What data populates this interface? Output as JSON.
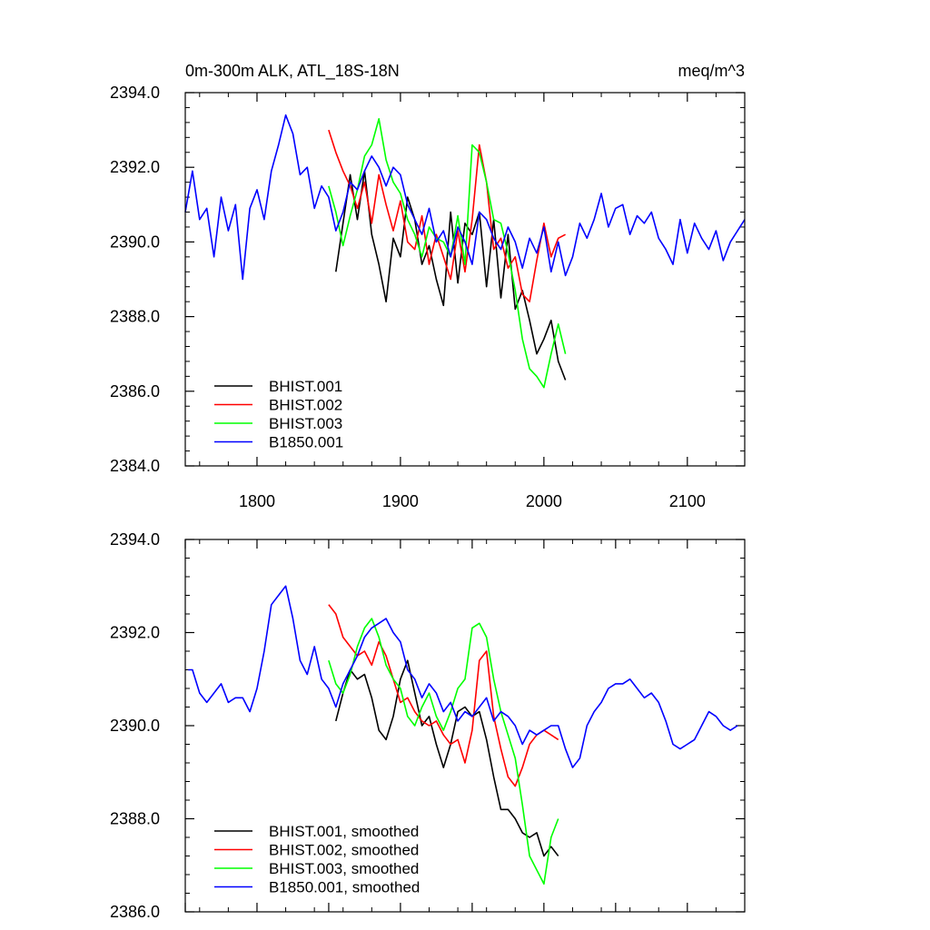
{
  "chart_data": [
    {
      "type": "line",
      "title_left": "0m-300m ALK, ATL_18S-18N",
      "title_right": "meq/m^3",
      "xlabel": "",
      "ylabel": "",
      "xlim": [
        1750,
        2140
      ],
      "ylim": [
        2384,
        2394
      ],
      "x_ticks": [
        1800,
        1900,
        2000,
        2100
      ],
      "x_tick_labels": [
        "1800",
        "1900",
        "2000",
        "2100"
      ],
      "y_ticks": [
        2384,
        2386,
        2388,
        2390,
        2392,
        2394
      ],
      "y_tick_labels": [
        "2384.0",
        "2386.0",
        "2388.0",
        "2390.0",
        "2392.0",
        "2394.0"
      ],
      "legend_position": "bottom-left",
      "series": [
        {
          "name": "BHIST.001",
          "color": "#000000",
          "x": [
            1855,
            1860,
            1865,
            1870,
            1875,
            1880,
            1885,
            1890,
            1895,
            1900,
            1905,
            1910,
            1915,
            1920,
            1925,
            1930,
            1935,
            1940,
            1945,
            1950,
            1955,
            1960,
            1965,
            1970,
            1975,
            1980,
            1985,
            1990,
            1995,
            2000,
            2005,
            2010,
            2015
          ],
          "y": [
            2389.2,
            2390.5,
            2391.8,
            2390.6,
            2391.9,
            2390.2,
            2389.4,
            2388.4,
            2390.1,
            2389.6,
            2391.2,
            2390.6,
            2389.4,
            2389.9,
            2389.0,
            2388.3,
            2390.8,
            2388.9,
            2390.5,
            2390.2,
            2390.8,
            2388.8,
            2390.6,
            2388.5,
            2390.2,
            2388.2,
            2388.7,
            2387.9,
            2387.0,
            2387.4,
            2387.9,
            2386.8,
            2386.3
          ]
        },
        {
          "name": "BHIST.002",
          "color": "#ff0000",
          "x": [
            1850,
            1855,
            1860,
            1865,
            1870,
            1875,
            1880,
            1885,
            1890,
            1895,
            1900,
            1905,
            1910,
            1915,
            1920,
            1925,
            1930,
            1935,
            1940,
            1945,
            1950,
            1955,
            1960,
            1965,
            1970,
            1975,
            1980,
            1985,
            1990,
            1995,
            2000,
            2005,
            2010,
            2015
          ],
          "y": [
            2393.0,
            2392.4,
            2391.9,
            2391.5,
            2390.9,
            2391.6,
            2390.5,
            2391.8,
            2391.0,
            2390.3,
            2391.1,
            2390.0,
            2389.8,
            2390.7,
            2389.4,
            2390.2,
            2389.6,
            2389.0,
            2390.3,
            2389.2,
            2390.6,
            2392.6,
            2391.6,
            2389.8,
            2390.1,
            2389.3,
            2389.6,
            2388.6,
            2388.4,
            2389.5,
            2390.5,
            2389.6,
            2390.1,
            2390.2
          ]
        },
        {
          "name": "BHIST.003",
          "color": "#00ff00",
          "x": [
            1850,
            1855,
            1860,
            1865,
            1870,
            1875,
            1880,
            1885,
            1890,
            1895,
            1900,
            1905,
            1910,
            1915,
            1920,
            1925,
            1930,
            1935,
            1940,
            1945,
            1950,
            1955,
            1960,
            1965,
            1970,
            1975,
            1980,
            1985,
            1990,
            1995,
            2000,
            2005,
            2010,
            2015
          ],
          "y": [
            2391.5,
            2390.8,
            2389.9,
            2390.7,
            2391.4,
            2392.3,
            2392.6,
            2393.3,
            2392.2,
            2391.6,
            2391.3,
            2390.6,
            2390.2,
            2389.6,
            2390.4,
            2390.1,
            2390.0,
            2389.6,
            2390.7,
            2389.4,
            2392.6,
            2392.4,
            2391.6,
            2390.6,
            2390.5,
            2389.7,
            2388.7,
            2387.4,
            2386.6,
            2386.4,
            2386.1,
            2387.0,
            2387.8,
            2387.0
          ]
        },
        {
          "name": "B1850.001",
          "color": "#0000ff",
          "x": [
            1750,
            1755,
            1760,
            1765,
            1770,
            1775,
            1780,
            1785,
            1790,
            1795,
            1800,
            1805,
            1810,
            1815,
            1820,
            1825,
            1830,
            1835,
            1840,
            1845,
            1850,
            1855,
            1860,
            1865,
            1870,
            1875,
            1880,
            1885,
            1890,
            1895,
            1900,
            1905,
            1910,
            1915,
            1920,
            1925,
            1930,
            1935,
            1940,
            1945,
            1950,
            1955,
            1960,
            1965,
            1970,
            1975,
            1980,
            1985,
            1990,
            1995,
            2000,
            2005,
            2010,
            2015,
            2020,
            2025,
            2030,
            2035,
            2040,
            2045,
            2050,
            2055,
            2060,
            2065,
            2070,
            2075,
            2080,
            2085,
            2090,
            2095,
            2100,
            2105,
            2110,
            2115,
            2120,
            2125,
            2130,
            2135,
            2140
          ],
          "y": [
            2390.8,
            2391.9,
            2390.6,
            2390.9,
            2389.6,
            2391.2,
            2390.3,
            2391.0,
            2389.0,
            2390.9,
            2391.4,
            2390.6,
            2391.9,
            2392.6,
            2393.4,
            2392.9,
            2391.8,
            2392.0,
            2390.9,
            2391.5,
            2391.2,
            2390.3,
            2390.8,
            2391.6,
            2391.4,
            2391.9,
            2392.3,
            2392.0,
            2391.5,
            2392.0,
            2391.8,
            2391.0,
            2390.6,
            2390.2,
            2390.9,
            2390.0,
            2390.3,
            2389.6,
            2390.4,
            2390.0,
            2389.4,
            2390.8,
            2390.6,
            2390.1,
            2389.8,
            2390.4,
            2390.0,
            2389.3,
            2390.1,
            2389.7,
            2390.4,
            2389.2,
            2390.0,
            2389.1,
            2389.6,
            2390.5,
            2390.1,
            2390.6,
            2391.3,
            2390.4,
            2390.9,
            2391.0,
            2390.2,
            2390.7,
            2390.5,
            2390.8,
            2390.1,
            2389.8,
            2389.4,
            2390.6,
            2389.7,
            2390.5,
            2390.1,
            2389.8,
            2390.3,
            2389.5,
            2390.0,
            2390.3,
            2390.6
          ]
        }
      ]
    },
    {
      "type": "line",
      "xlabel": "",
      "ylabel": "",
      "xlim": [
        1750,
        2140
      ],
      "ylim": [
        2386,
        2394
      ],
      "x_ticks": [
        1750,
        1800,
        1850,
        1900,
        1950,
        2000,
        2050,
        2100
      ],
      "y_ticks": [
        2386,
        2388,
        2390,
        2392,
        2394
      ],
      "y_tick_labels": [
        "2386.0",
        "2388.0",
        "2390.0",
        "2392.0",
        "2394.0"
      ],
      "legend_position": "bottom-left",
      "series": [
        {
          "name": "BHIST.001, smoothed",
          "color": "#000000",
          "x": [
            1855,
            1860,
            1865,
            1870,
            1875,
            1880,
            1885,
            1890,
            1895,
            1900,
            1905,
            1910,
            1915,
            1920,
            1925,
            1930,
            1935,
            1940,
            1945,
            1950,
            1955,
            1960,
            1965,
            1970,
            1975,
            1980,
            1985,
            1990,
            1995,
            2000,
            2005,
            2010
          ],
          "y": [
            2390.1,
            2390.7,
            2391.2,
            2391.0,
            2391.1,
            2390.6,
            2389.9,
            2389.7,
            2390.2,
            2391.0,
            2391.4,
            2390.7,
            2390.0,
            2390.2,
            2389.6,
            2389.1,
            2389.6,
            2390.3,
            2390.4,
            2390.2,
            2390.3,
            2389.7,
            2388.9,
            2388.2,
            2388.2,
            2388.0,
            2387.7,
            2387.6,
            2387.7,
            2387.2,
            2387.4,
            2387.2
          ]
        },
        {
          "name": "BHIST.002, smoothed",
          "color": "#ff0000",
          "x": [
            1850,
            1855,
            1860,
            1865,
            1870,
            1875,
            1880,
            1885,
            1890,
            1895,
            1900,
            1905,
            1910,
            1915,
            1920,
            1925,
            1930,
            1935,
            1940,
            1945,
            1950,
            1955,
            1960,
            1965,
            1970,
            1975,
            1980,
            1985,
            1990,
            1995,
            2000,
            2005,
            2010
          ],
          "y": [
            2392.6,
            2392.4,
            2391.9,
            2391.7,
            2391.5,
            2391.6,
            2391.3,
            2391.8,
            2391.5,
            2391.0,
            2390.5,
            2390.6,
            2390.3,
            2390.1,
            2390.0,
            2390.1,
            2389.8,
            2389.6,
            2389.7,
            2389.2,
            2389.9,
            2391.4,
            2391.6,
            2390.2,
            2389.5,
            2388.9,
            2388.7,
            2389.1,
            2389.6,
            2389.8,
            2389.9,
            2389.8,
            2389.7
          ]
        },
        {
          "name": "BHIST.003, smoothed",
          "color": "#00ff00",
          "x": [
            1850,
            1855,
            1860,
            1865,
            1870,
            1875,
            1880,
            1885,
            1890,
            1895,
            1900,
            1905,
            1910,
            1915,
            1920,
            1925,
            1930,
            1935,
            1940,
            1945,
            1950,
            1955,
            1960,
            1965,
            1970,
            1975,
            1980,
            1985,
            1990,
            1995,
            2000,
            2005,
            2010
          ],
          "y": [
            2391.4,
            2390.9,
            2390.7,
            2391.1,
            2391.7,
            2392.1,
            2392.3,
            2391.9,
            2391.3,
            2391.0,
            2390.8,
            2390.2,
            2390.0,
            2390.4,
            2390.7,
            2390.2,
            2389.9,
            2390.3,
            2390.8,
            2391.0,
            2392.1,
            2392.2,
            2391.9,
            2391.0,
            2390.3,
            2389.8,
            2389.3,
            2388.3,
            2387.2,
            2386.9,
            2386.6,
            2387.6,
            2388.0
          ]
        },
        {
          "name": "B1850.001, smoothed",
          "color": "#0000ff",
          "x": [
            1752,
            1755,
            1760,
            1765,
            1770,
            1775,
            1780,
            1785,
            1790,
            1795,
            1800,
            1805,
            1810,
            1815,
            1820,
            1825,
            1830,
            1835,
            1840,
            1845,
            1850,
            1855,
            1860,
            1865,
            1870,
            1875,
            1880,
            1885,
            1890,
            1895,
            1900,
            1905,
            1910,
            1915,
            1920,
            1925,
            1930,
            1935,
            1940,
            1945,
            1950,
            1955,
            1960,
            1965,
            1970,
            1975,
            1980,
            1985,
            1990,
            1995,
            2000,
            2005,
            2010,
            2015,
            2020,
            2025,
            2030,
            2035,
            2040,
            2045,
            2050,
            2055,
            2060,
            2065,
            2070,
            2075,
            2080,
            2085,
            2090,
            2095,
            2100,
            2105,
            2110,
            2115,
            2120,
            2125,
            2130,
            2135
          ],
          "y": [
            2391.2,
            2391.2,
            2390.7,
            2390.5,
            2390.7,
            2390.9,
            2390.5,
            2390.6,
            2390.6,
            2390.3,
            2390.8,
            2391.6,
            2392.6,
            2392.8,
            2393.0,
            2392.3,
            2391.4,
            2391.1,
            2391.7,
            2391.0,
            2390.8,
            2390.4,
            2390.9,
            2391.2,
            2391.5,
            2391.9,
            2392.1,
            2392.2,
            2392.3,
            2392.0,
            2391.8,
            2391.2,
            2391.0,
            2390.6,
            2390.9,
            2390.7,
            2390.3,
            2390.5,
            2390.1,
            2390.3,
            2390.2,
            2390.4,
            2390.6,
            2390.1,
            2390.3,
            2390.2,
            2390.0,
            2389.6,
            2389.9,
            2389.8,
            2389.9,
            2390.0,
            2390.0,
            2389.5,
            2389.1,
            2389.3,
            2390.0,
            2390.3,
            2390.5,
            2390.8,
            2390.9,
            2390.9,
            2391.0,
            2390.8,
            2390.6,
            2390.7,
            2390.5,
            2390.1,
            2389.6,
            2389.5,
            2389.6,
            2389.7,
            2390.0,
            2390.3,
            2390.2,
            2390.0,
            2389.9,
            2390.0
          ]
        }
      ]
    }
  ]
}
